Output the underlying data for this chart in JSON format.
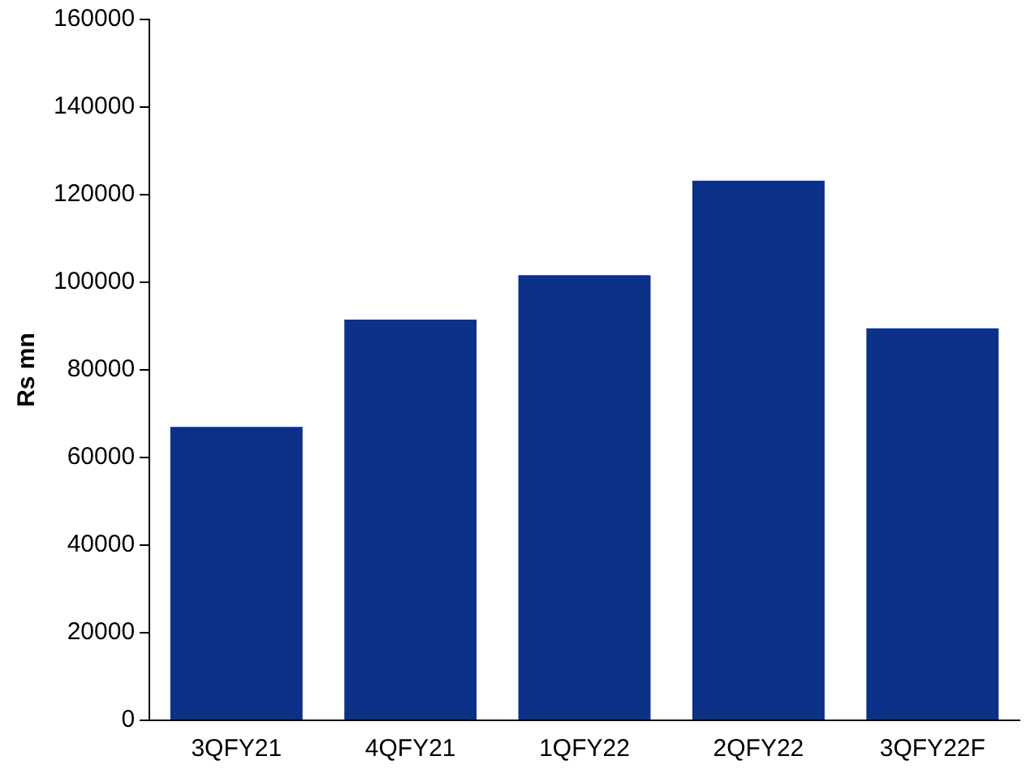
{
  "chart_data": {
    "type": "bar",
    "ylabel": "Rs mn",
    "categories": [
      "3QFY21",
      "4QFY21",
      "1QFY22",
      "2QFY22",
      "3QFY22F"
    ],
    "values": [
      67000,
      91500,
      101600,
      123200,
      89500
    ],
    "color": "#0c3189",
    "ylim": [
      0,
      160000
    ],
    "yticks": [
      0,
      20000,
      40000,
      60000,
      80000,
      100000,
      120000,
      140000,
      160000
    ],
    "grid": false,
    "legend": false
  }
}
